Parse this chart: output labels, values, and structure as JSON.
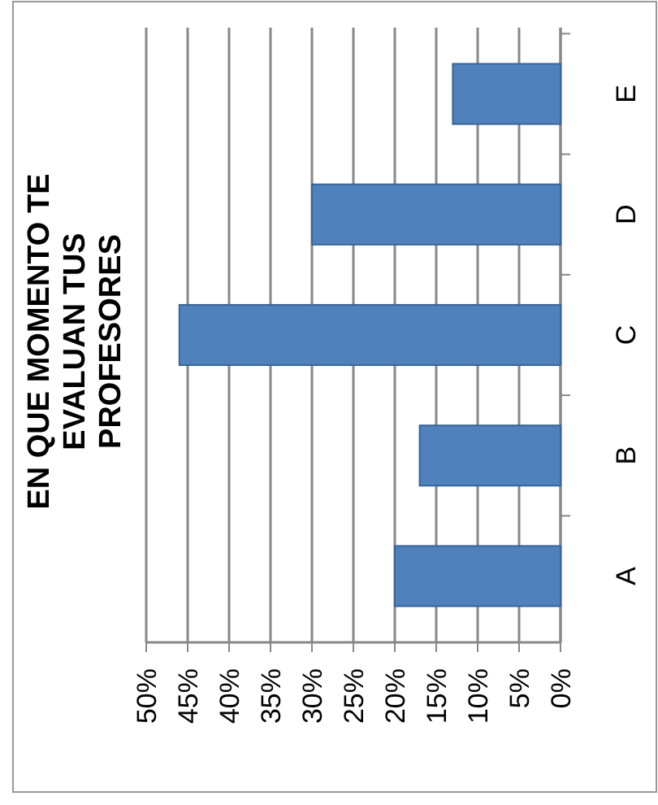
{
  "chart_data": {
    "type": "bar",
    "orientation": "horizontal",
    "title": "EN QUE MOMENTO TE EVALUAN TUS PROFESORES",
    "categories": [
      "E",
      "D",
      "C",
      "B",
      "A"
    ],
    "values": [
      13,
      30,
      46,
      17,
      20
    ],
    "color": "#4f81bd",
    "xlim": [
      50,
      0
    ],
    "xticks": [
      {
        "value": 50,
        "label": "50%"
      },
      {
        "value": 45,
        "label": "45%"
      },
      {
        "value": 40,
        "label": "40%"
      },
      {
        "value": 35,
        "label": "35%"
      },
      {
        "value": 30,
        "label": "30%"
      },
      {
        "value": 25,
        "label": "25%"
      },
      {
        "value": 20,
        "label": "20%"
      },
      {
        "value": 15,
        "label": "15%"
      },
      {
        "value": 10,
        "label": "10%"
      },
      {
        "value": 5,
        "label": "5%"
      },
      {
        "value": 0,
        "label": "0%"
      }
    ],
    "grid": true
  }
}
